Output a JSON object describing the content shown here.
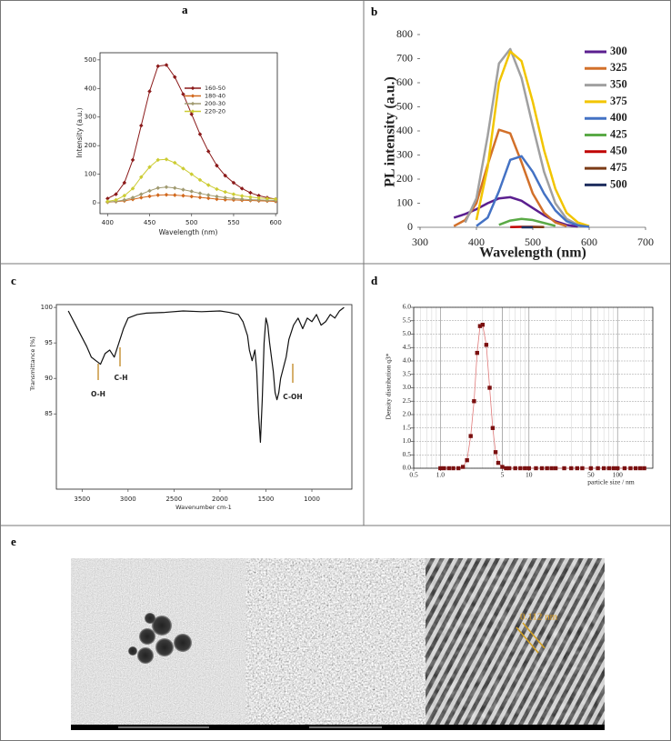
{
  "labels": [
    "a",
    "b",
    "c",
    "d",
    "e"
  ],
  "image_annotation": "0.112 nm",
  "chart_data": [
    {
      "type": "line",
      "x_label": "Wavelength (nm)",
      "y_label": "Intensity (a.u.)",
      "x": [
        400,
        410,
        420,
        430,
        440,
        450,
        460,
        470,
        480,
        490,
        500,
        510,
        520,
        530,
        540,
        550,
        560,
        570,
        580,
        590,
        600
      ],
      "xlim": [
        391,
        602
      ],
      "ylim": [
        -38,
        525
      ],
      "xticks": [
        400,
        450,
        500,
        550,
        600
      ],
      "yticks": [
        0,
        100,
        200,
        300,
        400,
        500
      ],
      "markers": true,
      "legend": "upper right",
      "series": [
        {
          "name": "160-50",
          "color": "#8b1a1a",
          "values": [
            15,
            30,
            70,
            150,
            270,
            390,
            478,
            482,
            440,
            380,
            310,
            240,
            180,
            130,
            95,
            70,
            50,
            35,
            25,
            18,
            13
          ]
        },
        {
          "name": "180-40",
          "color": "#d2691e",
          "values": [
            2,
            4,
            7,
            12,
            18,
            23,
            27,
            28,
            27,
            25,
            22,
            19,
            16,
            13,
            11,
            10,
            9,
            8,
            7,
            6,
            5
          ]
        },
        {
          "name": "200-30",
          "color": "#a09a70",
          "values": [
            3,
            5,
            10,
            18,
            30,
            42,
            52,
            55,
            52,
            46,
            40,
            33,
            27,
            22,
            18,
            15,
            13,
            11,
            10,
            9,
            8
          ]
        },
        {
          "name": "220-20",
          "color": "#cccc33",
          "values": [
            5,
            10,
            25,
            50,
            90,
            125,
            150,
            152,
            140,
            120,
            100,
            80,
            62,
            48,
            38,
            30,
            24,
            20,
            17,
            15,
            13
          ]
        }
      ]
    },
    {
      "type": "line",
      "x_label": "Wavelength (nm)",
      "y_label": "PL intensity (a.u.)",
      "x": [
        340,
        360,
        380,
        400,
        420,
        440,
        460,
        480,
        500,
        520,
        540,
        560,
        580,
        600,
        620
      ],
      "xlim": [
        300,
        700
      ],
      "ylim": [
        0,
        800
      ],
      "xticks": [
        300,
        400,
        500,
        600,
        700
      ],
      "yticks": [
        0,
        100,
        200,
        300,
        400,
        500,
        600,
        700,
        800
      ],
      "legend": "right",
      "series": [
        {
          "name": "300",
          "color": "#5b1f8f",
          "values": [
            null,
            40,
            55,
            75,
            100,
            120,
            125,
            110,
            80,
            50,
            25,
            10,
            3,
            null,
            null
          ]
        },
        {
          "name": "325",
          "color": "#d2702a",
          "values": [
            null,
            5,
            30,
            100,
            260,
            405,
            390,
            270,
            140,
            60,
            20,
            5,
            null,
            null,
            null
          ]
        },
        {
          "name": "350",
          "color": "#a0a0a0",
          "values": [
            null,
            null,
            20,
            120,
            380,
            680,
            740,
            620,
            420,
            230,
            100,
            35,
            10,
            2,
            null
          ]
        },
        {
          "name": "375",
          "color": "#f2c500",
          "values": [
            null,
            null,
            null,
            30,
            250,
            600,
            730,
            690,
            520,
            320,
            160,
            60,
            20,
            5,
            null
          ]
        },
        {
          "name": "400",
          "color": "#4472c4",
          "values": [
            null,
            null,
            null,
            5,
            40,
            150,
            280,
            295,
            230,
            140,
            70,
            25,
            8,
            2,
            null
          ]
        },
        {
          "name": "425",
          "color": "#5aaa46",
          "values": [
            null,
            null,
            null,
            null,
            null,
            10,
            28,
            35,
            30,
            18,
            6,
            null,
            null,
            null,
            null
          ]
        },
        {
          "name": "450",
          "color": "#c00000",
          "values": [
            null,
            null,
            null,
            null,
            null,
            null,
            1,
            2,
            2,
            1,
            null,
            null,
            null,
            null,
            null
          ]
        },
        {
          "name": "475",
          "color": "#7b3b16",
          "values": [
            null,
            null,
            null,
            null,
            null,
            null,
            null,
            1,
            1,
            1,
            null,
            null,
            null,
            null,
            null
          ]
        },
        {
          "name": "500",
          "color": "#1f2f5f",
          "values": [
            null,
            null,
            null,
            null,
            null,
            null,
            null,
            0,
            0,
            null,
            null,
            null,
            null,
            null,
            null
          ]
        }
      ]
    },
    {
      "type": "line",
      "x_label": "Wavenumber cm-1",
      "y_label": "Transmittance [%]",
      "x": [
        3650,
        3550,
        3450,
        3400,
        3350,
        3300,
        3250,
        3200,
        3150,
        3100,
        3050,
        3000,
        2900,
        2800,
        2600,
        2400,
        2200,
        2000,
        1900,
        1800,
        1750,
        1700,
        1680,
        1650,
        1620,
        1600,
        1580,
        1560,
        1540,
        1520,
        1500,
        1480,
        1460,
        1440,
        1420,
        1400,
        1380,
        1360,
        1340,
        1320,
        1300,
        1280,
        1250,
        1200,
        1150,
        1100,
        1050,
        1000,
        950,
        900,
        850,
        800,
        750,
        700,
        650
      ],
      "xlim": [
        3780,
        565
      ],
      "ylim": [
        74.4,
        100.4
      ],
      "xticks": [
        3500,
        3000,
        2500,
        2000,
        1500,
        1000
      ],
      "yticks": [
        85,
        90,
        95,
        100
      ],
      "annotations": [
        "O-H",
        "C-H",
        "C-OH"
      ],
      "series": [
        {
          "color": "#111111",
          "values": [
            99.5,
            97,
            94.5,
            93,
            92.5,
            92,
            93.5,
            94,
            93,
            95,
            97,
            98.5,
            99,
            99.2,
            99.3,
            99.5,
            99.4,
            99.5,
            99.3,
            99,
            98,
            96,
            94,
            92.5,
            94,
            91,
            85,
            81,
            87,
            95,
            98.5,
            97.5,
            95,
            93,
            91,
            88,
            87,
            88,
            90,
            91,
            92,
            93,
            95.5,
            97.5,
            98.5,
            97,
            98.5,
            98,
            99,
            97.5,
            98,
            99,
            98.5,
            99.5,
            100
          ]
        }
      ]
    },
    {
      "type": "line",
      "x_label": "particle size / nm",
      "y_label": "Density distribution q3*",
      "xlog": true,
      "grid": true,
      "markers": true,
      "x": [
        1.0,
        1.1,
        1.25,
        1.4,
        1.6,
        1.8,
        2.0,
        2.2,
        2.4,
        2.6,
        2.8,
        3.0,
        3.3,
        3.6,
        3.9,
        4.2,
        4.5,
        5,
        5.5,
        6,
        7,
        8,
        9,
        10,
        12,
        14,
        16,
        18,
        20,
        25,
        30,
        35,
        40,
        50,
        60,
        70,
        80,
        90,
        100,
        120,
        140,
        160,
        180,
        200
      ],
      "xlim": [
        0.5,
        250
      ],
      "ylim": [
        0,
        6
      ],
      "xticks": [
        0.5,
        {
          "value": 1,
          "label": "1.0"
        },
        5,
        10,
        50,
        100
      ],
      "yticks": [
        {
          "value": 0,
          "label": "0.0"
        },
        0.5,
        {
          "value": 1,
          "label": "1.0"
        },
        1.5,
        {
          "value": 2,
          "label": "2.0"
        },
        2.5,
        {
          "value": 3,
          "label": "3.0"
        },
        3.5,
        {
          "value": 4,
          "label": "4.0"
        },
        4.5,
        {
          "value": 5,
          "label": "5.0"
        },
        5.5,
        {
          "value": 6,
          "label": "6.0"
        }
      ],
      "series": [
        {
          "color": "#7a1010",
          "values": [
            0,
            0,
            0,
            0,
            0,
            0.05,
            0.3,
            1.2,
            2.5,
            4.3,
            5.3,
            5.35,
            4.6,
            3.0,
            1.5,
            0.6,
            0.2,
            0.05,
            0,
            0,
            0,
            0,
            0,
            0,
            0,
            0,
            0,
            0,
            0,
            0,
            0,
            0,
            0,
            0,
            0,
            0,
            0,
            0,
            0,
            0,
            0,
            0,
            0,
            0
          ]
        }
      ]
    }
  ]
}
